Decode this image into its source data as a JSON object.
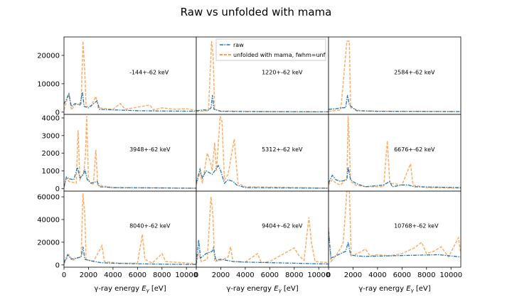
{
  "figure": {
    "title": "Raw vs unfolded with mama",
    "xlabel": "γ-ray energy E_γ [eV]",
    "legend": {
      "raw": "raw",
      "unfolded": "unfolded with mama, fwhm=unf"
    }
  },
  "colors": {
    "raw": "#1f77b4",
    "unfolded": "#ff7f0e"
  },
  "chart_data": {
    "type": "line",
    "grid": false,
    "legend_placement": "top-center",
    "xlim": [
      0,
      10800
    ],
    "x_ticks": [
      0,
      2000,
      4000,
      6000,
      8000,
      10000
    ],
    "rows": [
      {
        "ylim": [
          -800,
          26500
        ],
        "y_ticks": [
          0,
          10000,
          20000
        ]
      },
      {
        "ylim": [
          -150,
          4200
        ],
        "y_ticks": [
          0,
          1000,
          2000,
          3000,
          4000
        ]
      },
      {
        "ylim": [
          -2000,
          65000
        ],
        "y_ticks": [
          0,
          20000,
          40000,
          60000
        ]
      }
    ],
    "panels": [
      {
        "label": "-144+-62 keV",
        "raw": [
          [
            0,
            2800
          ],
          [
            200,
            4500
          ],
          [
            400,
            6500
          ],
          [
            600,
            2000
          ],
          [
            900,
            3000
          ],
          [
            1300,
            2500
          ],
          [
            1500,
            7000
          ],
          [
            1650,
            2000
          ],
          [
            2000,
            1500
          ],
          [
            2700,
            4000
          ],
          [
            2900,
            1000
          ],
          [
            4000,
            800
          ],
          [
            6000,
            500
          ],
          [
            8000,
            400
          ],
          [
            10800,
            300
          ]
        ],
        "unfolded": [
          [
            0,
            800
          ],
          [
            400,
            6500
          ],
          [
            600,
            800
          ],
          [
            1000,
            3000
          ],
          [
            1400,
            2500
          ],
          [
            1550,
            25000
          ],
          [
            1700,
            14000
          ],
          [
            1800,
            2000
          ],
          [
            2200,
            2000
          ],
          [
            2600,
            5500
          ],
          [
            2800,
            1500
          ],
          [
            4000,
            1000
          ],
          [
            4600,
            3000
          ],
          [
            5000,
            1000
          ],
          [
            7000,
            2500
          ],
          [
            7300,
            800
          ],
          [
            8000,
            1500
          ],
          [
            9000,
            1000
          ],
          [
            10000,
            1200
          ],
          [
            10800,
            500
          ]
        ]
      },
      {
        "label": "1220+-62 keV",
        "raw": [
          [
            0,
            500
          ],
          [
            600,
            800
          ],
          [
            1000,
            700
          ],
          [
            1200,
            1500
          ],
          [
            1320,
            6000
          ],
          [
            1450,
            1000
          ],
          [
            2000,
            300
          ],
          [
            4000,
            200
          ],
          [
            10800,
            100
          ]
        ],
        "unfolded": [
          [
            0,
            200
          ],
          [
            1000,
            500
          ],
          [
            1250,
            25000
          ],
          [
            1380,
            20000
          ],
          [
            1500,
            1000
          ],
          [
            2000,
            400
          ],
          [
            6000,
            200
          ],
          [
            10800,
            100
          ]
        ]
      },
      {
        "label": "2584+-62 keV",
        "raw": [
          [
            0,
            1000
          ],
          [
            600,
            1200
          ],
          [
            1000,
            1500
          ],
          [
            1400,
            1600
          ],
          [
            1550,
            6000
          ],
          [
            1700,
            2500
          ],
          [
            2000,
            1500
          ],
          [
            2300,
            500
          ],
          [
            4000,
            300
          ],
          [
            10800,
            200
          ]
        ],
        "unfolded": [
          [
            0,
            300
          ],
          [
            1000,
            800
          ],
          [
            1500,
            25000
          ],
          [
            1700,
            25000
          ],
          [
            1800,
            1500
          ],
          [
            2200,
            1000
          ],
          [
            2600,
            500
          ],
          [
            4000,
            300
          ],
          [
            10800,
            200
          ]
        ]
      },
      {
        "label": "3948+-62 keV",
        "raw": [
          [
            0,
            100
          ],
          [
            200,
            650
          ],
          [
            400,
            550
          ],
          [
            800,
            500
          ],
          [
            1100,
            1200
          ],
          [
            1300,
            600
          ],
          [
            1600,
            800
          ],
          [
            1700,
            1100
          ],
          [
            1900,
            500
          ],
          [
            2200,
            300
          ],
          [
            2700,
            400
          ],
          [
            2900,
            100
          ],
          [
            4000,
            50
          ],
          [
            10800,
            20
          ]
        ],
        "unfolded": [
          [
            0,
            50
          ],
          [
            200,
            600
          ],
          [
            400,
            400
          ],
          [
            1000,
            300
          ],
          [
            1150,
            3300
          ],
          [
            1300,
            500
          ],
          [
            1600,
            900
          ],
          [
            1750,
            1800
          ],
          [
            1850,
            4100
          ],
          [
            2000,
            500
          ],
          [
            2400,
            200
          ],
          [
            2600,
            2200
          ],
          [
            2750,
            200
          ],
          [
            4000,
            50
          ],
          [
            10800,
            20
          ]
        ]
      },
      {
        "label": "5312+-62 keV",
        "raw": [
          [
            0,
            300
          ],
          [
            300,
            1100
          ],
          [
            500,
            600
          ],
          [
            800,
            1000
          ],
          [
            1300,
            800
          ],
          [
            1600,
            1100
          ],
          [
            1800,
            1300
          ],
          [
            2000,
            1000
          ],
          [
            2300,
            300
          ],
          [
            2600,
            500
          ],
          [
            3000,
            400
          ],
          [
            3300,
            200
          ],
          [
            4000,
            50
          ],
          [
            10800,
            20
          ]
        ],
        "unfolded": [
          [
            0,
            200
          ],
          [
            300,
            900
          ],
          [
            500,
            300
          ],
          [
            900,
            2000
          ],
          [
            1150,
            1500
          ],
          [
            1300,
            1000
          ],
          [
            1500,
            2600
          ],
          [
            1650,
            1000
          ],
          [
            1950,
            4100
          ],
          [
            2100,
            3800
          ],
          [
            2300,
            500
          ],
          [
            2600,
            800
          ],
          [
            3100,
            2800
          ],
          [
            3400,
            300
          ],
          [
            4000,
            100
          ],
          [
            10800,
            20
          ]
        ]
      },
      {
        "label": "6676+-62 keV",
        "raw": [
          [
            0,
            300
          ],
          [
            300,
            750
          ],
          [
            600,
            500
          ],
          [
            1000,
            400
          ],
          [
            1500,
            500
          ],
          [
            1600,
            1200
          ],
          [
            1800,
            500
          ],
          [
            2200,
            300
          ],
          [
            3000,
            100
          ],
          [
            4500,
            200
          ],
          [
            5000,
            400
          ],
          [
            5200,
            100
          ],
          [
            6000,
            200
          ],
          [
            6500,
            200
          ],
          [
            7000,
            100
          ],
          [
            10800,
            50
          ]
        ],
        "unfolded": [
          [
            0,
            200
          ],
          [
            300,
            500
          ],
          [
            600,
            300
          ],
          [
            1000,
            200
          ],
          [
            1500,
            600
          ],
          [
            1600,
            4100
          ],
          [
            1700,
            2500
          ],
          [
            1800,
            400
          ],
          [
            2200,
            200
          ],
          [
            3000,
            100
          ],
          [
            4500,
            100
          ],
          [
            4800,
            2700
          ],
          [
            5000,
            300
          ],
          [
            6000,
            200
          ],
          [
            6700,
            1400
          ],
          [
            6900,
            200
          ],
          [
            8000,
            50
          ],
          [
            10800,
            20
          ]
        ]
      },
      {
        "label": "8040+-62 keV",
        "raw": [
          [
            0,
            2000
          ],
          [
            300,
            9000
          ],
          [
            600,
            5000
          ],
          [
            1000,
            6000
          ],
          [
            1400,
            7000
          ],
          [
            1550,
            16000
          ],
          [
            1700,
            5000
          ],
          [
            2000,
            4000
          ],
          [
            3000,
            2000
          ],
          [
            4000,
            1500
          ],
          [
            6000,
            1000
          ],
          [
            8000,
            700
          ],
          [
            10800,
            400
          ]
        ],
        "unfolded": [
          [
            0,
            1000
          ],
          [
            400,
            9000
          ],
          [
            700,
            4000
          ],
          [
            1100,
            6000
          ],
          [
            1400,
            7000
          ],
          [
            1550,
            63000
          ],
          [
            1700,
            45000
          ],
          [
            1800,
            5000
          ],
          [
            2400,
            3000
          ],
          [
            3100,
            17000
          ],
          [
            3300,
            3000
          ],
          [
            4500,
            1500
          ],
          [
            6000,
            1500
          ],
          [
            6400,
            27000
          ],
          [
            6600,
            5000
          ],
          [
            7200,
            1500
          ],
          [
            8000,
            10000
          ],
          [
            8300,
            3000
          ],
          [
            10800,
            1000
          ]
        ]
      },
      {
        "label": "9404+-62 keV",
        "raw": [
          [
            0,
            1000
          ],
          [
            200,
            22000
          ],
          [
            350,
            6000
          ],
          [
            800,
            10000
          ],
          [
            1300,
            12000
          ],
          [
            1400,
            15000
          ],
          [
            1600,
            4000
          ],
          [
            2000,
            5000
          ],
          [
            3000,
            3000
          ],
          [
            4000,
            2500
          ],
          [
            6000,
            2000
          ],
          [
            8000,
            1500
          ],
          [
            10000,
            1000
          ],
          [
            10800,
            800
          ]
        ],
        "unfolded": [
          [
            0,
            800
          ],
          [
            200,
            10000
          ],
          [
            400,
            3000
          ],
          [
            900,
            5000
          ],
          [
            1200,
            60000
          ],
          [
            1350,
            45000
          ],
          [
            1500,
            3000
          ],
          [
            2000,
            4000
          ],
          [
            2600,
            7000
          ],
          [
            2800,
            16000
          ],
          [
            3000,
            3000
          ],
          [
            4000,
            2500
          ],
          [
            5000,
            10000
          ],
          [
            5300,
            2000
          ],
          [
            6000,
            3000
          ],
          [
            8000,
            15000
          ],
          [
            8400,
            8000
          ],
          [
            8800,
            4000
          ],
          [
            9200,
            42000
          ],
          [
            9400,
            20000
          ],
          [
            9700,
            3000
          ],
          [
            10800,
            2000
          ]
        ]
      },
      {
        "label": "10768+-62 keV",
        "raw": [
          [
            0,
            30000
          ],
          [
            200,
            6000
          ],
          [
            600,
            8000
          ],
          [
            1000,
            10000
          ],
          [
            1400,
            12000
          ],
          [
            1600,
            20000
          ],
          [
            1800,
            9000
          ],
          [
            2200,
            8000
          ],
          [
            3000,
            7500
          ],
          [
            5000,
            8000
          ],
          [
            7000,
            8500
          ],
          [
            9000,
            9000
          ],
          [
            10800,
            7000
          ]
        ],
        "unfolded": [
          [
            0,
            33000
          ],
          [
            200,
            3000
          ],
          [
            600,
            8000
          ],
          [
            1000,
            15000
          ],
          [
            1200,
            20000
          ],
          [
            1500,
            65000
          ],
          [
            1700,
            65000
          ],
          [
            1850,
            8000
          ],
          [
            2400,
            10000
          ],
          [
            3000,
            14000
          ],
          [
            3400,
            8000
          ],
          [
            4000,
            9000
          ],
          [
            5000,
            8000
          ],
          [
            6000,
            10000
          ],
          [
            7000,
            15000
          ],
          [
            7600,
            20000
          ],
          [
            8000,
            10000
          ],
          [
            8600,
            12000
          ],
          [
            9200,
            16000
          ],
          [
            9800,
            7000
          ],
          [
            10600,
            24000
          ],
          [
            10800,
            10000
          ]
        ]
      }
    ]
  }
}
